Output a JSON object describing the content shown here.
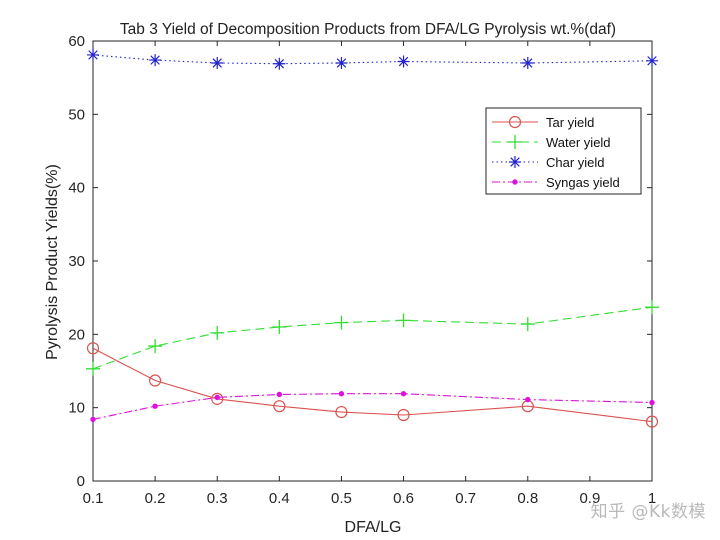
{
  "watermark": "知乎 @Kk数模",
  "chart_data": {
    "type": "line",
    "title": "Tab 3 Yield of Decomposition Products from DFA/LG Pyrolysis wt.%(daf)",
    "xlabel": "DFA/LG",
    "ylabel": "Pyrolysis Product Yields(%)",
    "xlim": [
      0.1,
      1
    ],
    "ylim": [
      0,
      60
    ],
    "xticks": [
      0.1,
      0.2,
      0.3,
      0.4,
      0.5,
      0.6,
      0.7,
      0.8,
      0.9,
      1
    ],
    "xtick_labels": [
      "0.1",
      "0.2",
      "0.3",
      "0.4",
      "0.5",
      "0.6",
      "0.7",
      "0.8",
      "0.9",
      "1"
    ],
    "yticks": [
      0,
      10,
      20,
      30,
      40,
      50,
      60
    ],
    "ytick_labels": [
      "0",
      "10",
      "20",
      "30",
      "40",
      "50",
      "60"
    ],
    "grid": false,
    "legend_position": "top-right",
    "x": [
      0.1,
      0.2,
      0.3,
      0.4,
      0.5,
      0.6,
      0.8,
      1.0
    ],
    "series": [
      {
        "name": "Tar yield",
        "values": [
          18.1,
          13.7,
          11.2,
          10.2,
          9.4,
          9.0,
          10.2,
          8.1
        ],
        "color": "#d9534f",
        "dash": "solid",
        "marker": "circle"
      },
      {
        "name": "Water yield",
        "values": [
          15.3,
          18.4,
          20.2,
          21.0,
          21.6,
          21.9,
          21.4,
          23.7
        ],
        "color": "#33dd33",
        "dash": "dashed",
        "marker": "plus"
      },
      {
        "name": "Char yield",
        "values": [
          58.1,
          57.4,
          57.0,
          56.9,
          57.0,
          57.2,
          57.0,
          57.3
        ],
        "color": "#2222cc",
        "dash": "dotted",
        "marker": "asterisk"
      },
      {
        "name": "Syngas yield",
        "values": [
          8.4,
          10.2,
          11.4,
          11.8,
          11.9,
          11.9,
          11.1,
          10.7
        ],
        "color": "#dd11dd",
        "dash": "dashdot",
        "marker": "dot"
      }
    ]
  }
}
